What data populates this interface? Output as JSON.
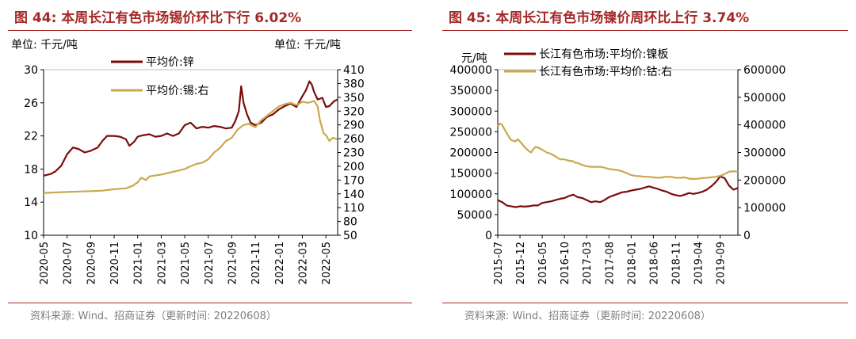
{
  "colors": {
    "accent": "#a52a2a",
    "series_dark": "#7a0c0c",
    "series_gold": "#c9a94e",
    "grid": "#d9d9d9",
    "source": "#7f7f7f"
  },
  "panel1": {
    "title": "图 44:  本周长江有色市场锡价环比下行 6.02%",
    "unit_left": "单位:  千元/吨",
    "unit_right": "单位:  千元/吨",
    "source": "资料来源:  Wind、招商证券（更新时间: 20220608）"
  },
  "panel2": {
    "title": "图 45:  本周长江有色市场镍价周环比上行 3.74%",
    "unit_left": "元/吨",
    "source": "资料来源:  Wind、招商证券（更新时间: 20220608）"
  },
  "chart_data": [
    {
      "type": "line",
      "title": "图 44:  本周长江有色市场锡价环比下行 6.02%",
      "x_type": "month_index",
      "x_range": [
        0,
        25
      ],
      "xticks": [
        "2020-05",
        "2020-07",
        "2020-09",
        "2020-11",
        "2021-01",
        "2021-03",
        "2021-05",
        "2021-07",
        "2021-09",
        "2021-11",
        "2022-01",
        "2022-03",
        "2022-05"
      ],
      "xtick_pos": [
        0,
        2,
        4,
        6,
        8,
        10,
        12,
        14,
        16,
        18,
        20,
        22,
        24
      ],
      "y_left": {
        "min": 10,
        "max": 30,
        "ticks": [
          "10",
          "14",
          "18",
          "22",
          "26",
          "30"
        ]
      },
      "y_right": {
        "min": 50,
        "max": 410,
        "ticks": [
          "50",
          "80",
          "110",
          "140",
          "170",
          "200",
          "230",
          "260",
          "290",
          "320",
          "350",
          "380",
          "410"
        ]
      },
      "series": [
        {
          "name": "平均价:锌",
          "axis": "left",
          "color": "#7a0c0c",
          "points": [
            [
              0,
              17.2
            ],
            [
              0.6,
              17.4
            ],
            [
              1.0,
              17.7
            ],
            [
              1.5,
              18.4
            ],
            [
              2.0,
              19.8
            ],
            [
              2.5,
              20.6
            ],
            [
              3.0,
              20.4
            ],
            [
              3.5,
              20.0
            ],
            [
              4.0,
              20.2
            ],
            [
              4.6,
              20.6
            ],
            [
              5.0,
              21.4
            ],
            [
              5.4,
              22.0
            ],
            [
              6.0,
              22.0
            ],
            [
              6.5,
              21.9
            ],
            [
              7.0,
              21.6
            ],
            [
              7.3,
              20.8
            ],
            [
              7.7,
              21.3
            ],
            [
              8.0,
              21.9
            ],
            [
              8.5,
              22.1
            ],
            [
              9.0,
              22.2
            ],
            [
              9.5,
              21.9
            ],
            [
              10.0,
              22.0
            ],
            [
              10.5,
              22.3
            ],
            [
              11.0,
              22.0
            ],
            [
              11.5,
              22.3
            ],
            [
              12.0,
              23.3
            ],
            [
              12.5,
              23.6
            ],
            [
              13.0,
              22.9
            ],
            [
              13.5,
              23.1
            ],
            [
              14.0,
              23.0
            ],
            [
              14.5,
              23.2
            ],
            [
              15.0,
              23.1
            ],
            [
              15.5,
              22.9
            ],
            [
              16.0,
              23.0
            ],
            [
              16.3,
              23.8
            ],
            [
              16.6,
              25.0
            ],
            [
              16.8,
              28.0
            ],
            [
              17.0,
              26.0
            ],
            [
              17.3,
              24.6
            ],
            [
              17.6,
              23.6
            ],
            [
              18.0,
              23.3
            ],
            [
              18.5,
              23.6
            ],
            [
              19.0,
              24.3
            ],
            [
              19.5,
              24.6
            ],
            [
              20.0,
              25.2
            ],
            [
              20.5,
              25.6
            ],
            [
              21.0,
              25.9
            ],
            [
              21.5,
              25.5
            ],
            [
              22.0,
              26.8
            ],
            [
              22.3,
              27.5
            ],
            [
              22.6,
              28.6
            ],
            [
              22.8,
              28.2
            ],
            [
              23.0,
              27.3
            ],
            [
              23.3,
              26.4
            ],
            [
              23.7,
              26.6
            ],
            [
              24.0,
              25.5
            ],
            [
              24.3,
              25.6
            ],
            [
              24.7,
              26.2
            ],
            [
              25.0,
              26.4
            ]
          ]
        },
        {
          "name": "平均价:锡:右",
          "axis": "right",
          "color": "#c9a94e",
          "points": [
            [
              0,
              142
            ],
            [
              1,
              143
            ],
            [
              2,
              144
            ],
            [
              3,
              145
            ],
            [
              4,
              146
            ],
            [
              5,
              147
            ],
            [
              6,
              150
            ],
            [
              7,
              152
            ],
            [
              7.6,
              158
            ],
            [
              8.0,
              165
            ],
            [
              8.3,
              175
            ],
            [
              8.7,
              170
            ],
            [
              9.0,
              178
            ],
            [
              10,
              182
            ],
            [
              11,
              188
            ],
            [
              12,
              194
            ],
            [
              12.5,
              200
            ],
            [
              13.0,
              205
            ],
            [
              13.5,
              208
            ],
            [
              14.0,
              215
            ],
            [
              14.5,
              230
            ],
            [
              15.0,
              240
            ],
            [
              15.5,
              255
            ],
            [
              16.0,
              262
            ],
            [
              16.5,
              280
            ],
            [
              17.0,
              290
            ],
            [
              17.5,
              292
            ],
            [
              18.0,
              285
            ],
            [
              18.5,
              300
            ],
            [
              19.0,
              310
            ],
            [
              19.5,
              320
            ],
            [
              20.0,
              330
            ],
            [
              20.5,
              335
            ],
            [
              21.0,
              338
            ],
            [
              21.5,
              333
            ],
            [
              22.0,
              340
            ],
            [
              22.5,
              338
            ],
            [
              23.0,
              342
            ],
            [
              23.3,
              330
            ],
            [
              23.5,
              300
            ],
            [
              23.8,
              272
            ],
            [
              24.0,
              268
            ],
            [
              24.3,
              255
            ],
            [
              24.6,
              262
            ],
            [
              25.0,
              258
            ]
          ]
        }
      ]
    },
    {
      "type": "line",
      "title": "图 45:  本周长江有色市场镍价周环比上行 3.74%",
      "x_type": "month_index",
      "x_range": [
        0,
        54
      ],
      "xticks": [
        "2015-07",
        "2015-12",
        "2016-05",
        "2016-10",
        "2017-03",
        "2017-08",
        "2018-01",
        "2018-06",
        "2018-11",
        "2019-04",
        "2019-09"
      ],
      "xtick_pos": [
        0,
        5,
        10,
        15,
        20,
        25,
        30,
        35,
        40,
        45,
        50
      ],
      "y_left": {
        "min": 0,
        "max": 400000,
        "ticks": [
          "0",
          "50000",
          "100000",
          "150000",
          "200000",
          "250000",
          "300000",
          "350000",
          "400000"
        ]
      },
      "y_right": {
        "min": 0,
        "max": 600000,
        "ticks": [
          "0",
          "100000",
          "200000",
          "300000",
          "400000",
          "500000",
          "600000"
        ]
      },
      "series": [
        {
          "name": "长江有色市场:平均价:镍板",
          "axis": "left",
          "color": "#7a0c0c",
          "points": [
            [
              0,
              85000
            ],
            [
              1,
              80000
            ],
            [
              2,
              72000
            ],
            [
              3,
              70000
            ],
            [
              4,
              68000
            ],
            [
              5,
              70000
            ],
            [
              6,
              69000
            ],
            [
              7,
              70000
            ],
            [
              8,
              72000
            ],
            [
              9,
              72000
            ],
            [
              10,
              78000
            ],
            [
              11,
              80000
            ],
            [
              12,
              82000
            ],
            [
              13,
              85000
            ],
            [
              14,
              88000
            ],
            [
              15,
              90000
            ],
            [
              16,
              95000
            ],
            [
              17,
              98000
            ],
            [
              18,
              92000
            ],
            [
              19,
              90000
            ],
            [
              20,
              85000
            ],
            [
              21,
              80000
            ],
            [
              22,
              82000
            ],
            [
              23,
              80000
            ],
            [
              24,
              85000
            ],
            [
              25,
              92000
            ],
            [
              26,
              96000
            ],
            [
              27,
              100000
            ],
            [
              28,
              104000
            ],
            [
              29,
              105000
            ],
            [
              30,
              108000
            ],
            [
              31,
              110000
            ],
            [
              32,
              112000
            ],
            [
              33,
              115000
            ],
            [
              34,
              118000
            ],
            [
              35,
              115000
            ],
            [
              36,
              112000
            ],
            [
              37,
              108000
            ],
            [
              38,
              105000
            ],
            [
              39,
              100000
            ],
            [
              40,
              97000
            ],
            [
              41,
              95000
            ],
            [
              42,
              98000
            ],
            [
              43,
              102000
            ],
            [
              44,
              100000
            ],
            [
              45,
              102000
            ],
            [
              46,
              105000
            ],
            [
              47,
              110000
            ],
            [
              48,
              118000
            ],
            [
              49,
              128000
            ],
            [
              50,
              142000
            ],
            [
              51,
              138000
            ],
            [
              52,
              120000
            ],
            [
              53,
              110000
            ],
            [
              54,
              114000
            ]
          ]
        },
        {
          "name": "长江有色市场:平均价:钴:右",
          "axis": "right",
          "color": "#c9a94e",
          "points": [
            [
              0,
              395000
            ],
            [
              0.5,
              405000
            ],
            [
              1,
              400000
            ],
            [
              2,
              370000
            ],
            [
              3,
              345000
            ],
            [
              4,
              340000
            ],
            [
              4.5,
              348000
            ],
            [
              5,
              340000
            ],
            [
              6,
              320000
            ],
            [
              7,
              305000
            ],
            [
              7.5,
              300000
            ],
            [
              8,
              312000
            ],
            [
              8.5,
              320000
            ],
            [
              9,
              318000
            ],
            [
              10,
              310000
            ],
            [
              11,
              300000
            ],
            [
              12,
              295000
            ],
            [
              13,
              285000
            ],
            [
              14,
              275000
            ],
            [
              15,
              275000
            ],
            [
              16,
              270000
            ],
            [
              17,
              268000
            ],
            [
              17.5,
              262000
            ],
            [
              18,
              262000
            ],
            [
              19,
              255000
            ],
            [
              20,
              250000
            ],
            [
              21,
              248000
            ],
            [
              22,
              248000
            ],
            [
              23,
              248000
            ],
            [
              24,
              245000
            ],
            [
              25,
              240000
            ],
            [
              26,
              238000
            ],
            [
              27,
              236000
            ],
            [
              28,
              232000
            ],
            [
              29,
              225000
            ],
            [
              30,
              218000
            ],
            [
              31,
              215000
            ],
            [
              32,
              214000
            ],
            [
              33,
              212000
            ],
            [
              34,
              212000
            ],
            [
              35,
              210000
            ],
            [
              36,
              208000
            ],
            [
              37,
              210000
            ],
            [
              38,
              212000
            ],
            [
              39,
              212000
            ],
            [
              40,
              208000
            ],
            [
              41,
              208000
            ],
            [
              42,
              210000
            ],
            [
              43,
              205000
            ],
            [
              44,
              204000
            ],
            [
              45,
              205000
            ],
            [
              46,
              207000
            ],
            [
              47,
              208000
            ],
            [
              48,
              210000
            ],
            [
              49,
              212000
            ],
            [
              50,
              215000
            ],
            [
              51,
              222000
            ],
            [
              52,
              230000
            ],
            [
              53,
              232000
            ],
            [
              54,
              230000
            ]
          ]
        }
      ]
    }
  ]
}
